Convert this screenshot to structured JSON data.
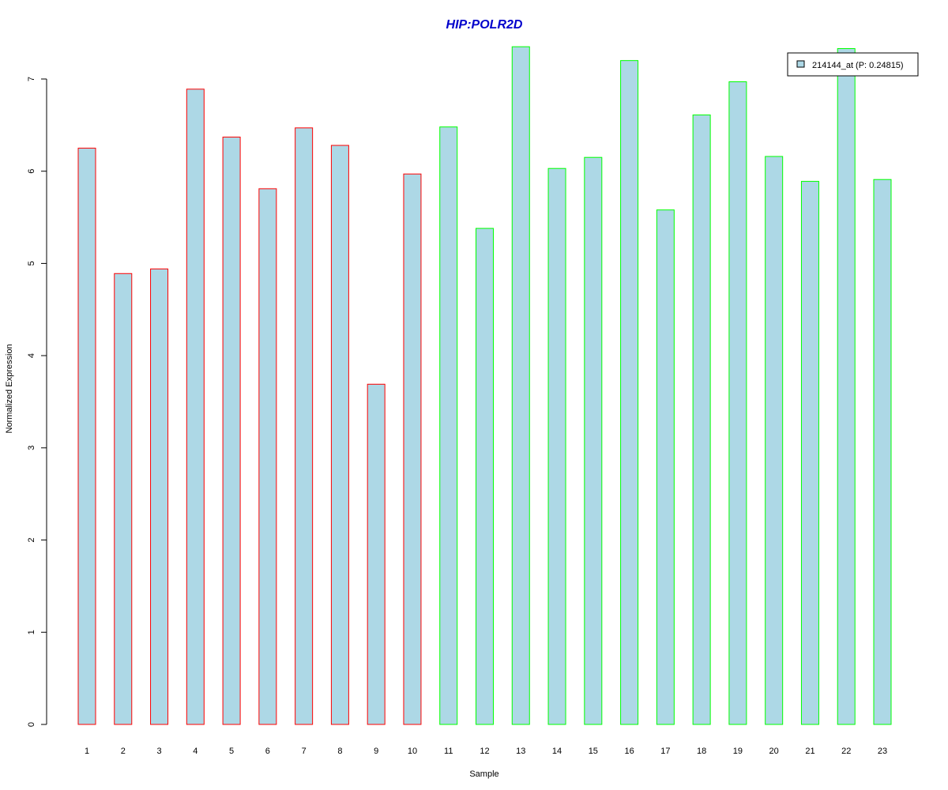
{
  "chart_data": {
    "type": "bar",
    "title": "HIP:POLR2D",
    "xlabel": "Sample",
    "ylabel": "Normalized Expression",
    "categories": [
      "1",
      "2",
      "3",
      "4",
      "5",
      "6",
      "7",
      "8",
      "9",
      "10",
      "11",
      "12",
      "13",
      "14",
      "15",
      "16",
      "17",
      "18",
      "19",
      "20",
      "21",
      "22",
      "23"
    ],
    "series": [
      {
        "name": "214144_at (P: 0.24815)",
        "values": [
          6.25,
          4.89,
          4.94,
          6.89,
          6.37,
          5.81,
          6.47,
          6.28,
          3.69,
          5.97,
          6.48,
          5.38,
          7.35,
          6.03,
          6.15,
          7.2,
          5.58,
          6.61,
          6.97,
          6.16,
          5.89,
          7.33,
          5.91
        ]
      }
    ],
    "ylim": [
      0,
      7
    ],
    "yticks": [
      "0",
      "1",
      "2",
      "3",
      "4",
      "5",
      "6",
      "7"
    ],
    "grid": false,
    "legend_position": "top-right"
  },
  "colors": {
    "title": "#0000CC",
    "bar_fill": "#ADD8E6",
    "group_a_border": "#FF0000",
    "group_b_border": "#00FF00",
    "group_a_samples": [
      "1",
      "2",
      "3",
      "4",
      "5",
      "6",
      "7",
      "8",
      "9",
      "10"
    ],
    "group_b_samples": [
      "11",
      "12",
      "13",
      "14",
      "15",
      "16",
      "17",
      "18",
      "19",
      "20",
      "21",
      "22",
      "23"
    ]
  }
}
